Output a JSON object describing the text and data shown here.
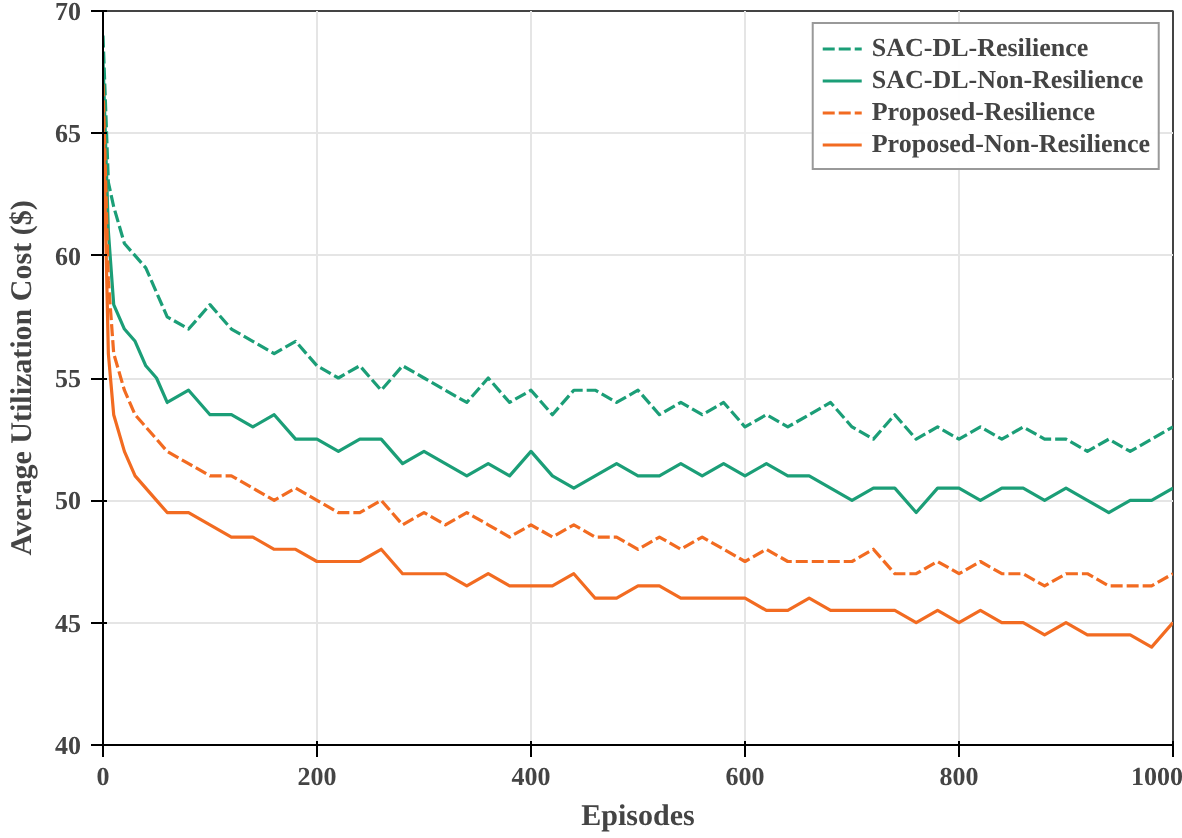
{
  "chart_data": {
    "type": "line",
    "xlabel": "Episodes",
    "ylabel": "Average Utilization Cost ($)",
    "x": [
      0,
      5,
      10,
      20,
      30,
      40,
      50,
      60,
      80,
      100,
      120,
      140,
      160,
      180,
      200,
      220,
      240,
      260,
      280,
      300,
      320,
      340,
      360,
      380,
      400,
      420,
      440,
      460,
      480,
      500,
      520,
      540,
      560,
      580,
      600,
      620,
      640,
      660,
      680,
      700,
      720,
      740,
      760,
      780,
      800,
      820,
      840,
      860,
      880,
      900,
      920,
      940,
      960,
      980,
      1000
    ],
    "series": [
      {
        "name": "SAC-DL-Resilience",
        "color": "#1b9e77",
        "line_style": "dashed",
        "values": [
          69,
          63,
          62,
          60.5,
          60,
          59.5,
          58.5,
          57.5,
          57,
          58,
          57,
          56.5,
          56,
          56.5,
          55.5,
          55,
          55.5,
          54.5,
          55.5,
          55,
          54.5,
          54,
          55,
          54,
          54.5,
          53.5,
          54.5,
          54.5,
          54,
          54.5,
          53.5,
          54,
          53.5,
          54,
          53,
          53.5,
          53,
          53.5,
          54,
          53,
          52.5,
          53.5,
          52.5,
          53,
          52.5,
          53,
          52.5,
          53,
          52.5,
          52.5,
          52,
          52.5,
          52,
          52.5,
          53
        ]
      },
      {
        "name": "SAC-DL-Non-Resilience",
        "color": "#1b9e77",
        "line_style": "solid",
        "values": [
          68,
          61,
          58,
          57,
          56.5,
          55.5,
          55,
          54,
          54.5,
          53.5,
          53.5,
          53,
          53.5,
          52.5,
          52.5,
          52,
          52.5,
          52.5,
          51.5,
          52,
          51.5,
          51,
          51.5,
          51,
          52,
          51,
          50.5,
          51,
          51.5,
          51,
          51,
          51.5,
          51,
          51.5,
          51,
          51.5,
          51,
          51,
          50.5,
          50,
          50.5,
          50.5,
          49.5,
          50.5,
          50.5,
          50,
          50.5,
          50.5,
          50,
          50.5,
          50,
          49.5,
          50,
          50,
          50.5
        ]
      },
      {
        "name": "Proposed-Resilience",
        "color": "#f26b21",
        "line_style": "dashed",
        "values": [
          67,
          59,
          56,
          54.5,
          53.5,
          53,
          52.5,
          52,
          51.5,
          51,
          51,
          50.5,
          50,
          50.5,
          50,
          49.5,
          49.5,
          50,
          49,
          49.5,
          49,
          49.5,
          49,
          48.5,
          49,
          48.5,
          49,
          48.5,
          48.5,
          48,
          48.5,
          48,
          48.5,
          48,
          47.5,
          48,
          47.5,
          47.5,
          47.5,
          47.5,
          48,
          47,
          47,
          47.5,
          47,
          47.5,
          47,
          47,
          46.5,
          47,
          47,
          46.5,
          46.5,
          46.5,
          47
        ]
      },
      {
        "name": "Proposed-Non-Resilience",
        "color": "#f26b21",
        "line_style": "solid",
        "values": [
          66,
          56,
          53.5,
          52,
          51,
          50.5,
          50,
          49.5,
          49.5,
          49,
          48.5,
          48.5,
          48,
          48,
          47.5,
          47.5,
          47.5,
          48,
          47,
          47,
          47,
          46.5,
          47,
          46.5,
          46.5,
          46.5,
          47,
          46,
          46,
          46.5,
          46.5,
          46,
          46,
          46,
          46,
          45.5,
          45.5,
          46,
          45.5,
          45.5,
          45.5,
          45.5,
          45,
          45.5,
          45,
          45.5,
          45,
          45,
          44.5,
          45,
          44.5,
          44.5,
          44.5,
          44,
          45
        ]
      }
    ],
    "xlim": [
      0,
      1000
    ],
    "ylim": [
      40,
      70
    ],
    "xticks": [
      0,
      200,
      400,
      600,
      800,
      1000
    ],
    "yticks": [
      40,
      45,
      50,
      55,
      60,
      65,
      70
    ],
    "grid": true,
    "legend": "top right"
  }
}
